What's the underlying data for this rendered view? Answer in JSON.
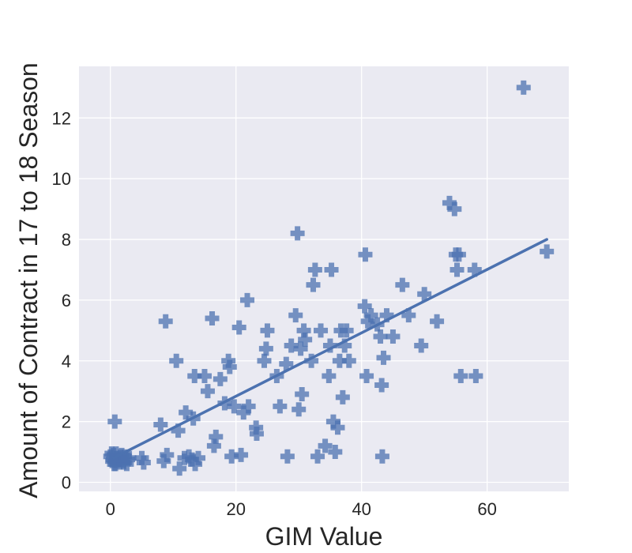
{
  "chart_data": {
    "type": "scatter",
    "title": "",
    "xlabel": "GIM Value",
    "ylabel": "Amount of Contract in 17 to 18 Season",
    "xlim": [
      -5,
      73
    ],
    "ylim": [
      -0.3,
      13.7
    ],
    "xticks": [
      0,
      20,
      40,
      60
    ],
    "yticks": [
      0,
      2,
      4,
      6,
      8,
      10,
      12
    ],
    "grid": true,
    "background": "#EAEAF2",
    "marker": "plus",
    "marker_color": "#4C72B0",
    "regression_line": {
      "x": [
        0.5,
        69.5
      ],
      "y": [
        0.8,
        8.0
      ],
      "color": "#4C72B0"
    },
    "points": [
      [
        0,
        0.85
      ],
      [
        0.3,
        0.7
      ],
      [
        0.5,
        0.9
      ],
      [
        0.8,
        0.6
      ],
      [
        1.0,
        0.8
      ],
      [
        1.3,
        0.75
      ],
      [
        1.5,
        0.65
      ],
      [
        1.8,
        0.9
      ],
      [
        2.0,
        0.7
      ],
      [
        2.3,
        0.85
      ],
      [
        2.6,
        0.6
      ],
      [
        3.0,
        0.8
      ],
      [
        0.2,
        0.95
      ],
      [
        0.6,
        0.6
      ],
      [
        1.1,
        0.7
      ],
      [
        1.6,
        0.85
      ],
      [
        2.1,
        0.65
      ],
      [
        2.8,
        0.75
      ],
      [
        0.4,
        0.75
      ],
      [
        0.9,
        0.95
      ],
      [
        0.7,
        2.0
      ],
      [
        5.0,
        0.8
      ],
      [
        5.3,
        0.65
      ],
      [
        8.0,
        1.9
      ],
      [
        8.5,
        0.7
      ],
      [
        9.0,
        0.9
      ],
      [
        8.8,
        5.3
      ],
      [
        10.5,
        4.0
      ],
      [
        10.8,
        1.7
      ],
      [
        11.0,
        0.45
      ],
      [
        11.8,
        0.8
      ],
      [
        12.0,
        2.3
      ],
      [
        12.5,
        0.85
      ],
      [
        13.0,
        0.75
      ],
      [
        13.2,
        2.1
      ],
      [
        13.4,
        3.5
      ],
      [
        13.5,
        0.6
      ],
      [
        14.0,
        0.8
      ],
      [
        15.0,
        3.5
      ],
      [
        15.5,
        3.0
      ],
      [
        16.2,
        5.4
      ],
      [
        16.5,
        1.2
      ],
      [
        16.8,
        1.5
      ],
      [
        17.5,
        3.4
      ],
      [
        18.2,
        2.6
      ],
      [
        18.8,
        4.0
      ],
      [
        19.0,
        3.8
      ],
      [
        19.3,
        0.85
      ],
      [
        19.7,
        2.5
      ],
      [
        20.5,
        5.1
      ],
      [
        20.8,
        0.9
      ],
      [
        21.2,
        2.3
      ],
      [
        21.8,
        6.0
      ],
      [
        22.0,
        2.5
      ],
      [
        23.2,
        1.8
      ],
      [
        23.3,
        1.6
      ],
      [
        24.5,
        4.0
      ],
      [
        24.8,
        4.4
      ],
      [
        25.0,
        5.0
      ],
      [
        26.5,
        3.5
      ],
      [
        27.0,
        2.5
      ],
      [
        28.0,
        3.9
      ],
      [
        28.2,
        0.85
      ],
      [
        28.8,
        4.5
      ],
      [
        29.5,
        5.5
      ],
      [
        29.8,
        8.2
      ],
      [
        30.0,
        2.4
      ],
      [
        30.3,
        4.4
      ],
      [
        30.5,
        2.9
      ],
      [
        31.0,
        4.7
      ],
      [
        30.8,
        5.0
      ],
      [
        32.0,
        4.0
      ],
      [
        32.3,
        6.5
      ],
      [
        32.6,
        7.0
      ],
      [
        33.0,
        0.85
      ],
      [
        33.5,
        5.0
      ],
      [
        34.2,
        1.2
      ],
      [
        34.8,
        3.5
      ],
      [
        35.0,
        4.5
      ],
      [
        35.2,
        7.0
      ],
      [
        35.5,
        2.0
      ],
      [
        35.8,
        1.0
      ],
      [
        36.2,
        1.8
      ],
      [
        36.5,
        4.0
      ],
      [
        36.7,
        5.0
      ],
      [
        37.0,
        2.8
      ],
      [
        37.3,
        4.5
      ],
      [
        37.6,
        5.0
      ],
      [
        38.0,
        4.0
      ],
      [
        40.5,
        5.8
      ],
      [
        40.6,
        7.5
      ],
      [
        40.8,
        3.5
      ],
      [
        41.0,
        5.3
      ],
      [
        41.5,
        5.5
      ],
      [
        42.5,
        5.2
      ],
      [
        43.0,
        4.8
      ],
      [
        43.2,
        3.2
      ],
      [
        43.3,
        0.85
      ],
      [
        43.5,
        4.1
      ],
      [
        44.0,
        5.5
      ],
      [
        45.0,
        4.8
      ],
      [
        46.5,
        6.5
      ],
      [
        47.5,
        5.5
      ],
      [
        49.5,
        4.5
      ],
      [
        50.0,
        6.2
      ],
      [
        52.0,
        5.3
      ],
      [
        54.0,
        9.2
      ],
      [
        54.8,
        9.0
      ],
      [
        55.0,
        7.5
      ],
      [
        55.2,
        7.0
      ],
      [
        55.5,
        7.5
      ],
      [
        55.8,
        3.5
      ],
      [
        58.0,
        7.0
      ],
      [
        58.2,
        3.5
      ],
      [
        65.8,
        13.0
      ],
      [
        69.5,
        7.6
      ]
    ]
  }
}
